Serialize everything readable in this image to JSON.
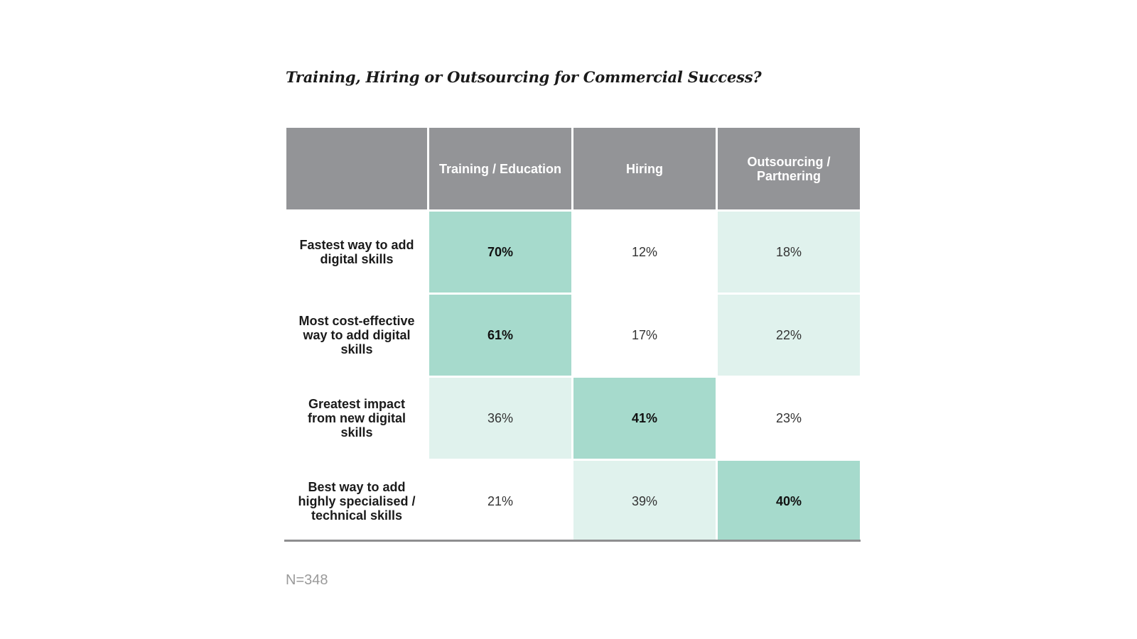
{
  "chart_data": {
    "type": "table",
    "title": "Training, Hiring or Outsourcing for Commercial Success?",
    "columns": [
      "",
      "Training / Education",
      "Hiring",
      "Outsourcing / Partnering"
    ],
    "rows": [
      {
        "label": "Fastest way to add digital skills",
        "values": [
          "70%",
          "12%",
          "18%"
        ],
        "shades": [
          "high",
          "none",
          "low"
        ]
      },
      {
        "label": "Most cost-effective way to add digital skills",
        "values": [
          "61%",
          "17%",
          "22%"
        ],
        "shades": [
          "high",
          "none",
          "low"
        ]
      },
      {
        "label": "Greatest impact from new digital skills",
        "values": [
          "36%",
          "41%",
          "23%"
        ],
        "shades": [
          "low",
          "high",
          "none"
        ]
      },
      {
        "label": "Best way to add highly specialised / technical skills",
        "values": [
          "21%",
          "39%",
          "40%"
        ],
        "shades": [
          "none",
          "low",
          "high"
        ]
      }
    ],
    "note": "N=348",
    "colors": {
      "header": "#939497",
      "high": "#a6dacc",
      "low": "#e0f2ed",
      "none": "#ffffff"
    }
  }
}
